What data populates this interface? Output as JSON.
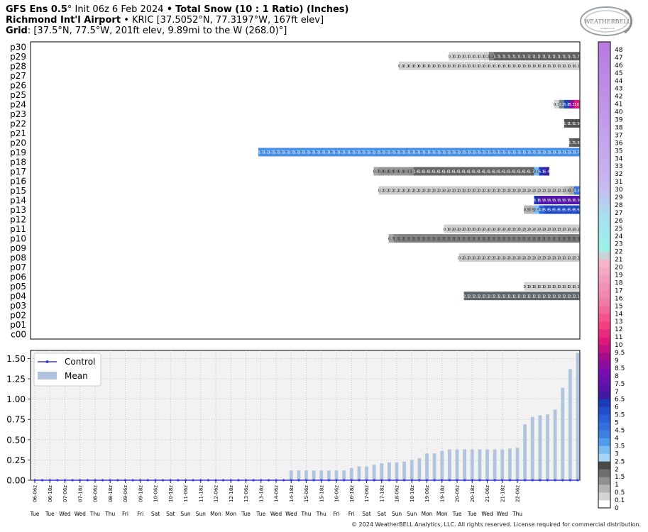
{
  "header": {
    "line1_model": "GFS Ens 0.5",
    "line1_init": "° Init 06z 6 Feb 2024",
    "line1_sep": "•",
    "line1_product": "Total Snow (10 : 1 Ratio) (Inches)",
    "line2_station": "Richmond Int'l Airport",
    "line2_details": "• KRIC [37.5052°N, 77.3197°W, 167ft elev]",
    "line3_label": "Grid",
    "line3_details": ": [37.5°N, 77.5°W, 201ft elev, 9.89mi to the W (268.0)°]"
  },
  "logo": {
    "text": "WEATHERBELL",
    "sub": "Analytics LLC"
  },
  "copyright": "© 2024 WeatherBELL Analytics, LLC. All rights reserved. License required for commercial distribution.",
  "colors": {
    "control": "#3b3bd6",
    "mean": "#b0c4de",
    "grid": "#bdbdbd",
    "panel_bg": "#f2f2f2"
  },
  "chart_data": [
    {
      "type": "heatmap",
      "members": [
        "p30",
        "p29",
        "p28",
        "p27",
        "p26",
        "p25",
        "p24",
        "p23",
        "p22",
        "p21",
        "p20",
        "p19",
        "p18",
        "p17",
        "p16",
        "p15",
        "p14",
        "p13",
        "p12",
        "p11",
        "p10",
        "p09",
        "p08",
        "p07",
        "p06",
        "p05",
        "p04",
        "p03",
        "p02",
        "p01",
        "c00"
      ],
      "num_steps": 64,
      "rows": {
        "p29": {
          "start": 38,
          "values": [
            "0.1",
            "0.1",
            "0.1",
            "0.1",
            "0.1",
            "0.1",
            "0.1",
            "0.2",
            "1.2",
            "1.7",
            "1.7",
            "1.7",
            "1.7",
            "1.7",
            "1.7",
            "1.7",
            "1.7",
            "1.7",
            "1.7",
            "1.7",
            "1.7",
            "1.7",
            "1.7",
            "1.7",
            "1.7",
            "1.7"
          ]
        },
        "p28": {
          "start": 28,
          "values": [
            "0.1",
            "0.1",
            "0.1",
            "0.1",
            "0.1",
            "0.1",
            "0.1",
            "0.1",
            "0.1",
            "0.1",
            "0.1",
            "0.1",
            "0.1",
            "0.1",
            "0.1",
            "0.1",
            "0.1",
            "0.1",
            "0.1",
            "0.1",
            "0.1",
            "0.1",
            "0.1",
            "0.1",
            "0.1",
            "0.1",
            "0.1",
            "0.1",
            "0.1",
            "0.1",
            "0.1",
            "0.1",
            "0.1",
            "0.1",
            "0.1",
            "0.1"
          ]
        },
        "p24": {
          "start": 59,
          "values": [
            "0.1",
            "2.2",
            "5.8",
            "8.3",
            "10"
          ]
        },
        "p22": {
          "start": 61,
          "values": [
            "1.9",
            "1.9",
            "1.9"
          ]
        },
        "p20": {
          "start": 62,
          "values": [
            "1.7",
            "1.8"
          ]
        },
        "p19": {
          "start": 0,
          "values": [
            "3.7",
            "3.7",
            "3.7",
            "3.7",
            "3.7",
            "3.7",
            "3.7",
            "3.7",
            "3.7",
            "3.7",
            "3.7",
            "3.7",
            "3.7",
            "3.7",
            "3.7",
            "3.7",
            "3.7",
            "3.7",
            "3.7",
            "3.7",
            "3.7",
            "3.7",
            "3.7",
            "3.7",
            "3.7",
            "3.7",
            "3.7",
            "3.7",
            "3.7",
            "3.7",
            "3.7",
            "3.7",
            "3.7",
            "3.7",
            "3.7",
            "3.7",
            "3.7",
            "3.7",
            "3.7",
            "3.7",
            "3.7",
            "3.7",
            "3.7",
            "3.7",
            "3.7",
            "3.7",
            "3.7",
            "3.7",
            "3.7",
            "3.7",
            "3.7",
            "3.7",
            "3.7",
            "3.7",
            "3.7",
            "3.7",
            "3.7",
            "3.7",
            "3.7",
            "3.7",
            "3.7",
            "3.7",
            "3.7",
            "3.7"
          ]
        },
        "p17": {
          "start": 23,
          "values": [
            "0.7",
            "0.9",
            "0.9",
            "0.9",
            "0.9",
            "0.9",
            "0.9",
            "1",
            "1.6",
            "1.6",
            "1.6",
            "1.6",
            "1.6",
            "1.6",
            "1.6",
            "1.6",
            "1.6",
            "1.6",
            "1.6",
            "1.6",
            "1.6",
            "1.6",
            "1.6",
            "1.6",
            "1.6",
            "1.6",
            "1.6",
            "1.6",
            "1.6",
            "1.6",
            "1.6",
            "1.7",
            "3.0",
            "6.1",
            "6.4"
          ]
        },
        "p15": {
          "start": 24,
          "values": [
            "0.2",
            "0.2",
            "0.2",
            "0.2",
            "0.2",
            "0.2",
            "0.2",
            "0.2",
            "0.2",
            "0.2",
            "0.2",
            "0.2",
            "0.2",
            "0.2",
            "0.2",
            "0.2",
            "0.2",
            "0.2",
            "0.2",
            "0.2",
            "0.2",
            "0.2",
            "0.2",
            "0.2",
            "0.2",
            "0.2",
            "0.2",
            "0.2",
            "0.2",
            "0.2",
            "0.2",
            "0.2",
            "0.2",
            "0.2",
            "0.2",
            "0.2",
            "0.2",
            "0.4",
            "0.7",
            "4.3"
          ]
        },
        "p14": {
          "start": 55,
          "values": [
            "6.1",
            "6.9",
            "6.9",
            "6.9",
            "6.9",
            "6.9",
            "6.9",
            "6.9",
            "6.9"
          ]
        },
        "p13": {
          "start": 53,
          "values": [
            "0.5",
            "0.5",
            "2.9",
            "4.8",
            "5.6",
            "5.6",
            "5.6",
            "5.6",
            "5.6",
            "5.6",
            "5.6"
          ]
        },
        "p11": {
          "start": 37,
          "values": [
            "0.1",
            "0.2",
            "0.2",
            "0.2",
            "0.2",
            "0.2",
            "0.2",
            "0.2",
            "0.2",
            "0.2",
            "0.2",
            "0.2",
            "0.2",
            "0.2",
            "0.2",
            "0.2",
            "0.2",
            "0.2",
            "0.2",
            "0.2",
            "0.2",
            "0.2",
            "0.2",
            "0.2",
            "0.2",
            "0.2",
            "0.2"
          ]
        },
        "p10": {
          "start": 26,
          "values": [
            "0.7",
            "1.1",
            "1.2",
            "1.2",
            "1.2",
            "1.2",
            "1.2",
            "1.2",
            "1.2",
            "1.2",
            "1.2",
            "1.2",
            "1.2",
            "1.2",
            "1.2",
            "1.2",
            "1.2",
            "1.2",
            "1.2",
            "1.2",
            "1.2",
            "1.2",
            "1.2",
            "1.2",
            "1.2",
            "1.2",
            "1.2",
            "1.2",
            "1.2",
            "1.2",
            "1.2",
            "1.2",
            "1.2",
            "1.2",
            "1.3",
            "1.3",
            "1.3",
            "1.3"
          ]
        },
        "p08": {
          "start": 40,
          "values": [
            "0.2",
            "0.2",
            "0.2",
            "0.2",
            "0.2",
            "0.2",
            "0.2",
            "0.2",
            "0.2",
            "0.2",
            "0.2",
            "0.2",
            "0.2",
            "0.2",
            "0.2",
            "0.2",
            "0.2",
            "0.2",
            "0.2",
            "0.2",
            "0.2",
            "0.2",
            "0.2",
            "0.2"
          ]
        },
        "p05": {
          "start": 53,
          "values": [
            "0.1",
            "0.1",
            "0.1",
            "0.1",
            "0.1",
            "0.1",
            "0.1",
            "0.1",
            "0.1",
            "0.1",
            "0.1"
          ]
        },
        "p04": {
          "start": 41,
          "values": [
            "2.1",
            "2.1",
            "2.1",
            "2.1",
            "2.1",
            "2.1",
            "2.1",
            "2.1",
            "2.1",
            "2.1",
            "2.1",
            "2.1",
            "2.1",
            "2.1",
            "2.1",
            "2.1",
            "2.1",
            "2.1",
            "2.1",
            "2.1",
            "2.1",
            "2.1",
            "2.1"
          ]
        }
      }
    },
    {
      "type": "bar",
      "ylim": [
        0,
        1.6
      ],
      "yticks": [
        "0.00",
        "0.25",
        "0.50",
        "0.75",
        "1.00",
        "1.25",
        "1.50"
      ],
      "xtick_labels": [
        "06-06z",
        "06-18z",
        "07-06z",
        "07-18z",
        "08-06z",
        "08-18z",
        "09-06z",
        "09-18z",
        "10-06z",
        "10-18z",
        "11-06z",
        "11-18z",
        "12-06z",
        "12-18z",
        "13-06z",
        "13-18z",
        "14-06z",
        "14-18z",
        "15-06z",
        "15-18z",
        "16-06z",
        "16-18z",
        "17-06z",
        "17-18z",
        "18-06z",
        "18-18z",
        "19-06z",
        "19-18z",
        "20-06z",
        "20-18z",
        "21-06z",
        "21-18z",
        "22-06z"
      ],
      "day_labels": [
        "Tue",
        "Tue",
        "Wed",
        "Wed",
        "Thu",
        "Thu",
        "Fri",
        "Fri",
        "Sat",
        "Sat",
        "Sun",
        "Sun",
        "Mon",
        "Mon",
        "Tue",
        "Tue",
        "Wed",
        "Wed",
        "Thu",
        "Thu",
        "Fri",
        "Fri",
        "Sat",
        "Sat",
        "Sun",
        "Sun",
        "Mon",
        "Mon",
        "Tue",
        "Tue",
        "Wed",
        "Wed",
        "Thu"
      ],
      "legend": [
        "Control",
        "Mean"
      ],
      "mean_values": [
        0,
        0,
        0,
        0,
        0,
        0,
        0,
        0,
        0,
        0,
        0,
        0,
        0,
        0,
        0,
        0,
        0,
        0,
        0,
        0,
        0,
        0,
        0,
        0,
        0,
        0,
        0,
        0,
        0,
        0,
        0,
        0,
        0,
        0,
        0.12,
        0.12,
        0.12,
        0.12,
        0.12,
        0.12,
        0.12,
        0.12,
        0.15,
        0.17,
        0.17,
        0.19,
        0.21,
        0.22,
        0.22,
        0.23,
        0.25,
        0.27,
        0.33,
        0.33,
        0.36,
        0.38,
        0.38,
        0.38,
        0.38,
        0.38,
        0.38,
        0.38,
        0.38,
        0.39,
        0.4,
        0.69,
        0.78,
        0.8,
        0.81,
        0.87,
        1.14,
        1.37,
        1.57
      ],
      "control_values": [
        0,
        0,
        0,
        0,
        0,
        0,
        0,
        0,
        0,
        0,
        0,
        0,
        0,
        0,
        0,
        0,
        0,
        0,
        0,
        0,
        0,
        0,
        0,
        0,
        0,
        0,
        0,
        0,
        0,
        0,
        0,
        0,
        0,
        0,
        0,
        0,
        0,
        0,
        0,
        0,
        0,
        0,
        0,
        0,
        0,
        0,
        0,
        0,
        0,
        0,
        0,
        0,
        0,
        0,
        0,
        0,
        0,
        0,
        0,
        0,
        0,
        0,
        0,
        0,
        0,
        0,
        0,
        0,
        0,
        0,
        0,
        0,
        0
      ]
    },
    {
      "type": "colorbar",
      "levels": [
        "0",
        "0.1",
        "0.5",
        "1",
        "1.5",
        "2",
        "2.5",
        "3",
        "3.5",
        "4",
        "4.5",
        "5",
        "5.5",
        "6",
        "6.5",
        "7",
        "7.5",
        "8",
        "8.5",
        "9",
        "9.5",
        "10",
        "11",
        "12",
        "13",
        "14",
        "15",
        "16",
        "17",
        "18",
        "19",
        "20",
        "21",
        "22",
        "23",
        "24",
        "25",
        "26",
        "27",
        "28",
        "29",
        "30",
        "31",
        "32",
        "33",
        "34",
        "35",
        "36",
        "37",
        "38",
        "39",
        "40",
        "41",
        "42",
        "43",
        "44",
        "45",
        "46",
        "47",
        "48"
      ]
    }
  ]
}
